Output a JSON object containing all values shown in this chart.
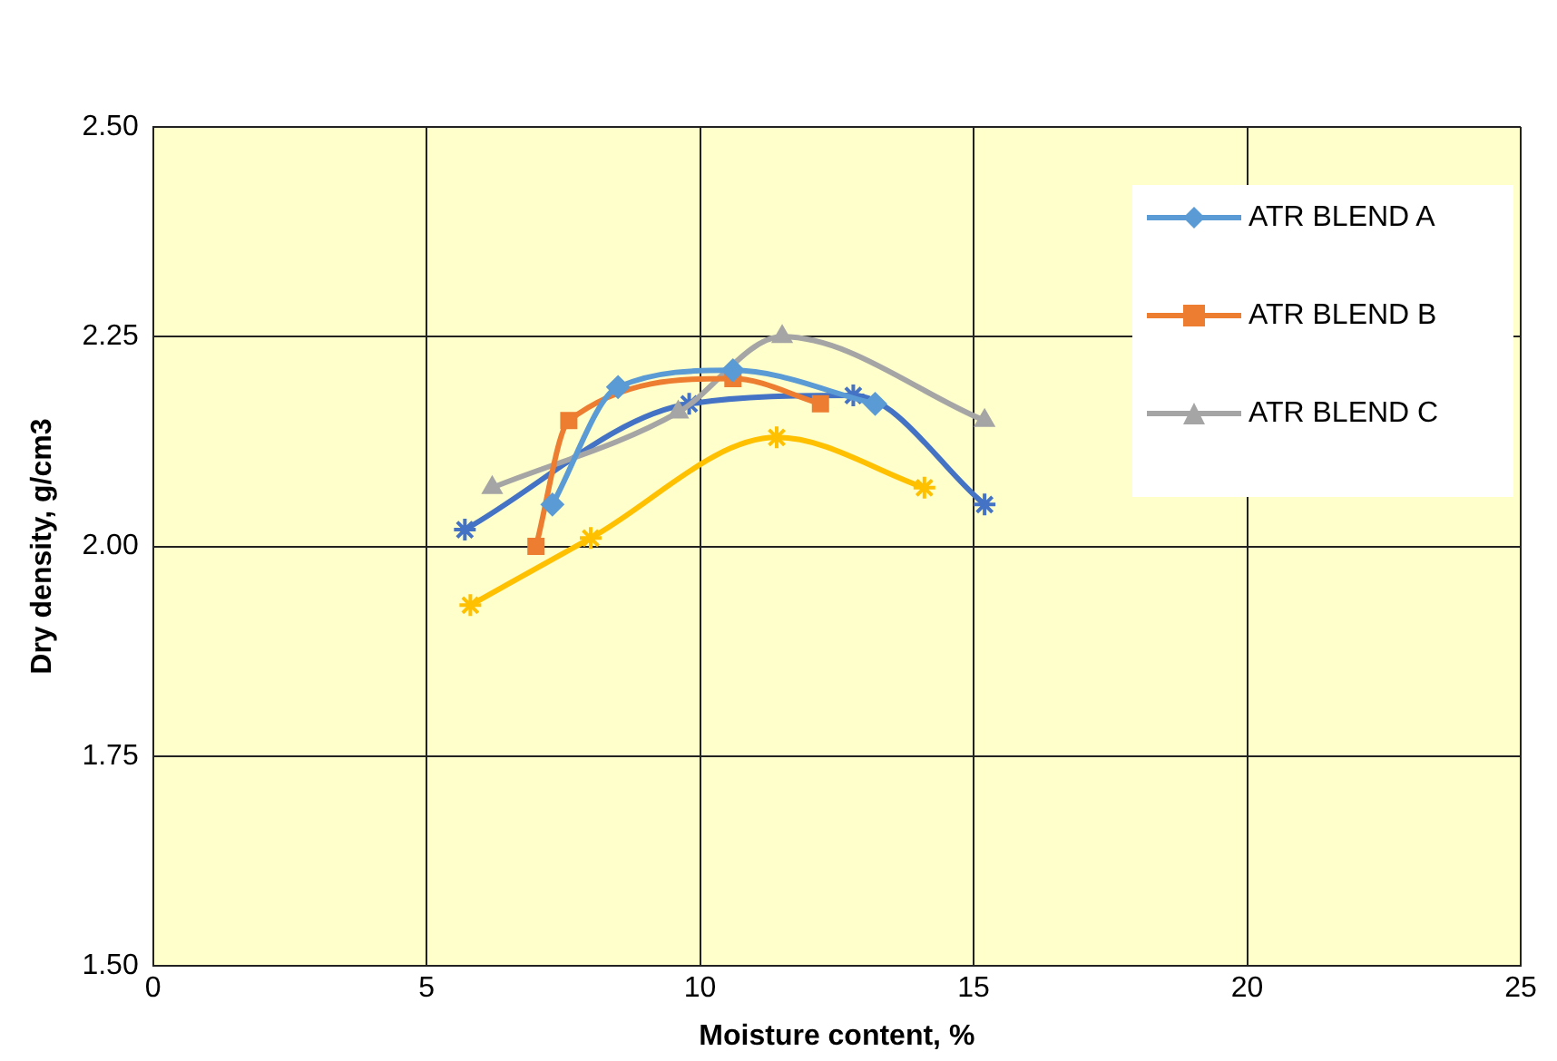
{
  "chart_data": {
    "type": "line",
    "xlabel": "Moisture content, %",
    "ylabel": "Dry density, g/cm3",
    "xlim": [
      0,
      25
    ],
    "xticks": [
      0,
      5,
      10,
      15,
      20,
      25
    ],
    "ylim": [
      1.5,
      2.5
    ],
    "yticks": [
      {
        "value": 1.5,
        "label": "1.50"
      },
      {
        "value": 1.75,
        "label": "1.75"
      },
      {
        "value": 2,
        "label": "2.00"
      },
      {
        "value": 2.25,
        "label": "2.25"
      },
      {
        "value": 2.5,
        "label": "2.50"
      }
    ],
    "grid": true,
    "legend": "top right",
    "series": [
      {
        "name": "ATR BLEND A",
        "color": "#5b9bd5",
        "marker": "diamond",
        "x": [
          7.3,
          8.5,
          10.6,
          13.2
        ],
        "values": [
          2.05,
          2.19,
          2.21,
          2.17
        ]
      },
      {
        "name": "ATR BLEND B",
        "color": "#ed7d31",
        "marker": "square",
        "x": [
          7.0,
          7.6,
          10.6,
          12.2
        ],
        "values": [
          2.0,
          2.15,
          2.2,
          2.17
        ]
      },
      {
        "name": "ATR BLEND C",
        "color": "#a5a5a5",
        "marker": "triangle",
        "x": [
          6.2,
          9.6,
          11.5,
          15.2
        ],
        "values": [
          2.07,
          2.16,
          2.25,
          2.15
        ]
      },
      {
        "color": "#4472c4",
        "marker": "cross",
        "x": [
          5.7,
          9.8,
          12.8,
          15.2
        ],
        "values": [
          2.02,
          2.17,
          2.18,
          2.05
        ]
      },
      {
        "color": "#ffc000",
        "marker": "cross",
        "x": [
          5.8,
          8.0,
          11.4,
          14.1
        ],
        "values": [
          1.93,
          2.01,
          2.13,
          2.07
        ]
      }
    ]
  }
}
